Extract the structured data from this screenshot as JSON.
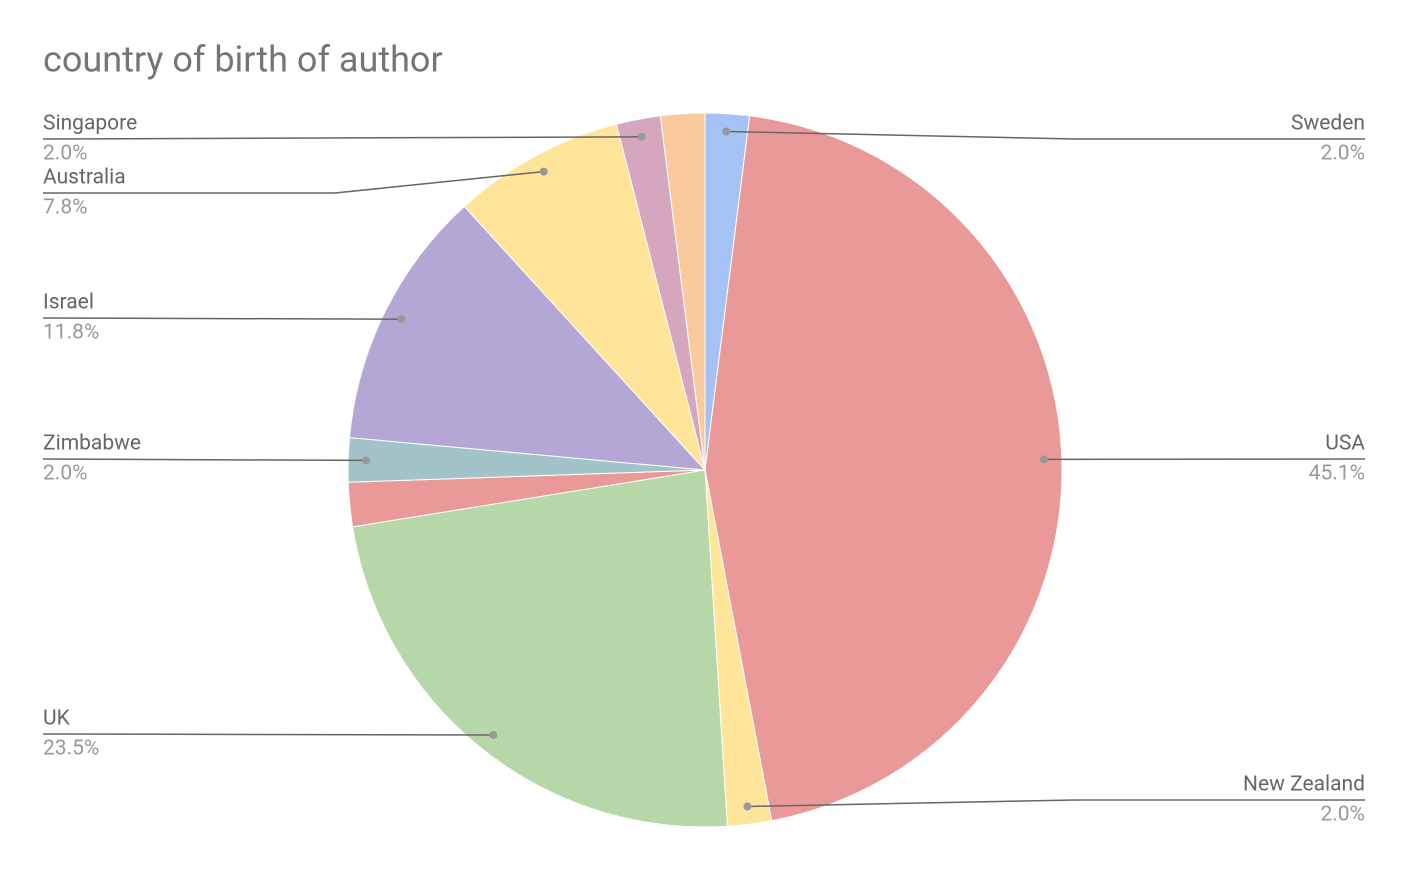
{
  "chart_data": {
    "type": "pie",
    "title": "country of birth of author",
    "categories": [
      "Sweden",
      "USA",
      "New Zealand",
      "UK",
      null,
      "Zimbabwe",
      "Israel",
      "Australia",
      "Singapore",
      null
    ],
    "values": [
      2.0,
      45.1,
      2.0,
      23.5,
      2.0,
      2.0,
      11.8,
      7.8,
      2.0,
      2.0
    ],
    "value_labels": [
      "2.0%",
      "45.1%",
      "2.0%",
      "23.5%",
      null,
      "2.0%",
      "11.8%",
      "7.8%",
      "2.0%",
      null
    ],
    "colors": [
      "#a4c2f4",
      "#ea9999",
      "#ffe599",
      "#b6d7a8",
      "#ea9999",
      "#a2c4c9",
      "#b4a7d6",
      "#ffe599",
      "#d5a6bd",
      "#f9cb9c"
    ]
  }
}
